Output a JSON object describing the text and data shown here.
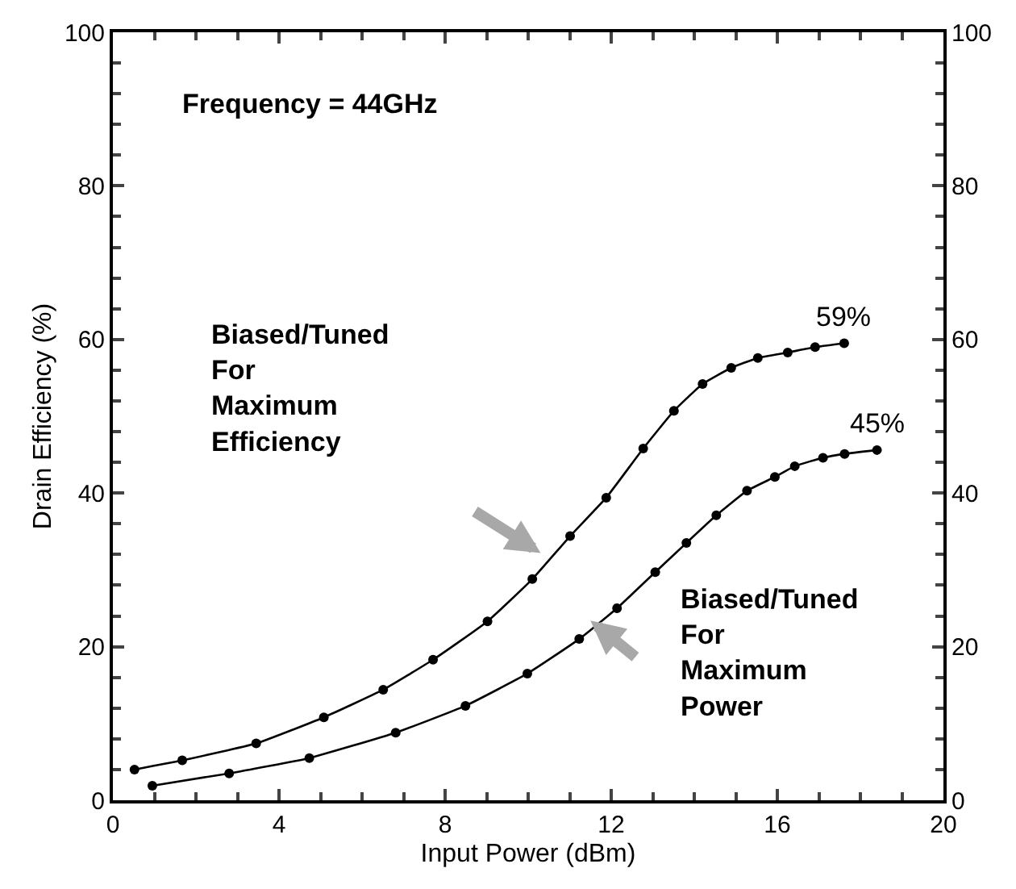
{
  "chart_data": {
    "type": "line",
    "xlabel": "Input Power (dBm)",
    "ylabel": "Drain Efficiency (%)",
    "xlim": [
      0,
      20
    ],
    "xticks": [
      0,
      4,
      8,
      12,
      16,
      20
    ],
    "ylim": [
      0,
      100
    ],
    "yticks": [
      0,
      20,
      40,
      60,
      80,
      100
    ],
    "y2lim": [
      0,
      100
    ],
    "y2ticks": [
      0,
      20,
      40,
      60,
      80,
      100
    ],
    "marker": "circle",
    "line_style": "solid",
    "series": [
      {
        "color": "#000000",
        "x": [
          0.52,
          1.67,
          3.45,
          5.08,
          6.51,
          7.71,
          9.02,
          10.1,
          11.01,
          11.88,
          12.77,
          13.51,
          14.2,
          14.89,
          15.53,
          16.25,
          16.91,
          17.61
        ],
        "values": [
          4.0,
          5.2,
          7.4,
          10.8,
          14.4,
          18.3,
          23.3,
          28.8,
          34.4,
          39.4,
          45.8,
          50.7,
          54.2,
          56.3,
          57.6,
          58.3,
          59.0,
          59.5
        ]
      },
      {
        "color": "#000000",
        "x": [
          0.95,
          2.8,
          4.73,
          6.81,
          8.49,
          9.98,
          11.23,
          12.14,
          13.06,
          13.81,
          14.53,
          15.27,
          15.94,
          16.42,
          17.1,
          17.62,
          18.4
        ],
        "values": [
          1.9,
          3.5,
          5.5,
          8.8,
          12.3,
          16.5,
          21.0,
          25.0,
          29.7,
          33.5,
          37.1,
          40.3,
          42.1,
          43.5,
          44.6,
          45.1,
          45.6
        ]
      }
    ],
    "annotations": [
      "Frequency = 44GHz",
      "Biased/Tuned\nFor\nMaximum\nEfficiency",
      "Biased/Tuned\nFor\nMaximum\nPower",
      {
        "text": "59%",
        "x": 17.61,
        "y": 59.5
      },
      {
        "text": "45%",
        "x": 18.4,
        "y": 45.6
      }
    ]
  }
}
